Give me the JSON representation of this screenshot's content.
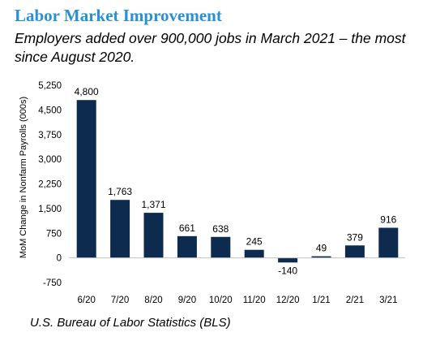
{
  "header": {
    "title": "Labor Market Improvement",
    "subtitle": "Employers added over 900,000 jobs in March 2021 – the most since August 2020."
  },
  "footer": {
    "source": "U.S. Bureau of Labor Statistics (BLS)"
  },
  "colors": {
    "title": "#2a8fd4",
    "bar": "#0d2a4f"
  },
  "chart_data": {
    "type": "bar",
    "categories": [
      "6/20",
      "7/20",
      "8/20",
      "9/20",
      "10/20",
      "11/20",
      "12/20",
      "1/21",
      "2/21",
      "3/21"
    ],
    "values": [
      4800,
      1763,
      1371,
      661,
      638,
      245,
      -140,
      49,
      379,
      916
    ],
    "data_labels": [
      "4,800",
      "1,763",
      "1,371",
      "661",
      "638",
      "245",
      "-140",
      "49",
      "379",
      "916"
    ],
    "xlabel": "",
    "ylabel": "MoM Change in Nonfarm Payrolls (000s)",
    "ylim": [
      -750,
      5250
    ],
    "y_ticks": [
      -750,
      0,
      750,
      1500,
      2250,
      3000,
      3750,
      4500,
      5250
    ],
    "y_tick_labels": [
      "-750",
      "0",
      "750",
      "1,500",
      "2,250",
      "3,000",
      "3,750",
      "4,500",
      "5,250"
    ],
    "grid": false,
    "legend": "none"
  }
}
